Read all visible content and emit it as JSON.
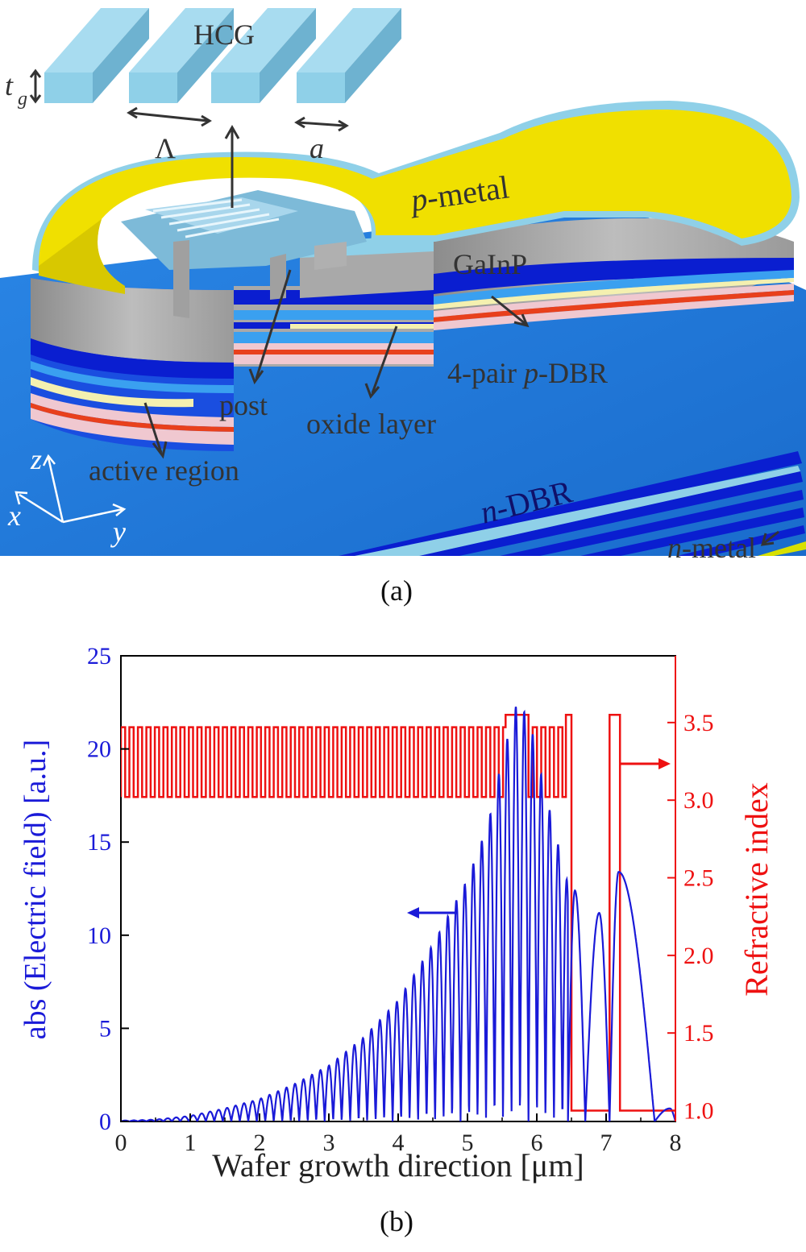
{
  "panel_a": {
    "caption": "(a)",
    "labels": {
      "hcg": "HCG",
      "tg": "t",
      "tg_sub": "g",
      "period": "Λ",
      "width": "a",
      "p_metal_italic": "p",
      "p_metal_rest": "-metal",
      "gainp": "GaInP",
      "pdbr_pre": "4-pair ",
      "pdbr_italic": "p",
      "pdbr_rest": "-DBR",
      "post": "post",
      "oxide": "oxide layer",
      "active": "active region",
      "ndbr_italic": "n",
      "ndbr_rest": "-DBR",
      "nmetal_italic": "n",
      "nmetal_rest": "-metal",
      "axis_x": "x",
      "axis_y": "y",
      "axis_z": "z"
    },
    "colors": {
      "metal": "#f0e000",
      "grating": "#8fd0e8",
      "substrate": "#1e78d8",
      "gainp": "#a8a8a8",
      "dbr_dark": "#0a1ed0",
      "active_red": "#e8401c",
      "pink": "#f0c8d0"
    }
  },
  "panel_b": {
    "caption": "(b)",
    "chart_data": {
      "type": "line",
      "xlabel": "Wafer growth direction [μm]",
      "ylabel_left": "abs (Electric field) [a.u.]",
      "ylabel_right": "Refractive index",
      "xlim": [
        0,
        8
      ],
      "ylim_left": [
        0,
        25
      ],
      "ylim_right": [
        0.93,
        3.93
      ],
      "x_ticks": [
        "0",
        "1",
        "2",
        "3",
        "4",
        "5",
        "6",
        "7",
        "8"
      ],
      "y_left_ticks": [
        "0",
        "5",
        "10",
        "15",
        "20",
        "25"
      ],
      "y_right_ticks": [
        "1.0",
        "1.5",
        "2.0",
        "2.5",
        "3.0",
        "3.5"
      ],
      "series": [
        {
          "axis": "left",
          "color": "#1a1ad8",
          "envelope_peaks": [
            [
              0.1,
              0.05
            ],
            [
              0.5,
              0.1
            ],
            [
              1.0,
              0.3
            ],
            [
              1.5,
              0.7
            ],
            [
              2.0,
              1.2
            ],
            [
              2.5,
              2.0
            ],
            [
              3.0,
              3.0
            ],
            [
              3.5,
              4.5
            ],
            [
              4.0,
              6.5
            ],
            [
              4.5,
              9.5
            ],
            [
              5.0,
              13.0
            ],
            [
              5.3,
              16.0
            ],
            [
              5.5,
              19.5
            ],
            [
              5.72,
              22.6
            ],
            [
              5.9,
              21.5
            ],
            [
              6.1,
              18.0
            ],
            [
              6.3,
              15.0
            ],
            [
              6.42,
              13.0
            ]
          ],
          "extra_lobes": [
            [
              6.55,
              12.4
            ],
            [
              6.9,
              11.2
            ],
            [
              7.18,
              13.4
            ],
            [
              7.92,
              0.7
            ]
          ],
          "zeros": [
            6.45,
            6.7,
            7.05,
            7.7
          ]
        },
        {
          "axis": "right",
          "color": "#ee1111",
          "dbr_start": 0.0,
          "dbr_end": 6.5,
          "dbr_period": 0.1225,
          "n_low": 3.02,
          "n_high": 3.47,
          "cavity": [
            5.55,
            5.88
          ],
          "cavity_index": 3.55,
          "post_step": [
            6.42,
            6.5
          ],
          "post_index": 3.55,
          "air": [
            6.5,
            7.05
          ],
          "air_index": 1.0,
          "grating": [
            7.05,
            7.2
          ],
          "grating_index": 3.55,
          "end_index": 1.0
        }
      ]
    }
  }
}
